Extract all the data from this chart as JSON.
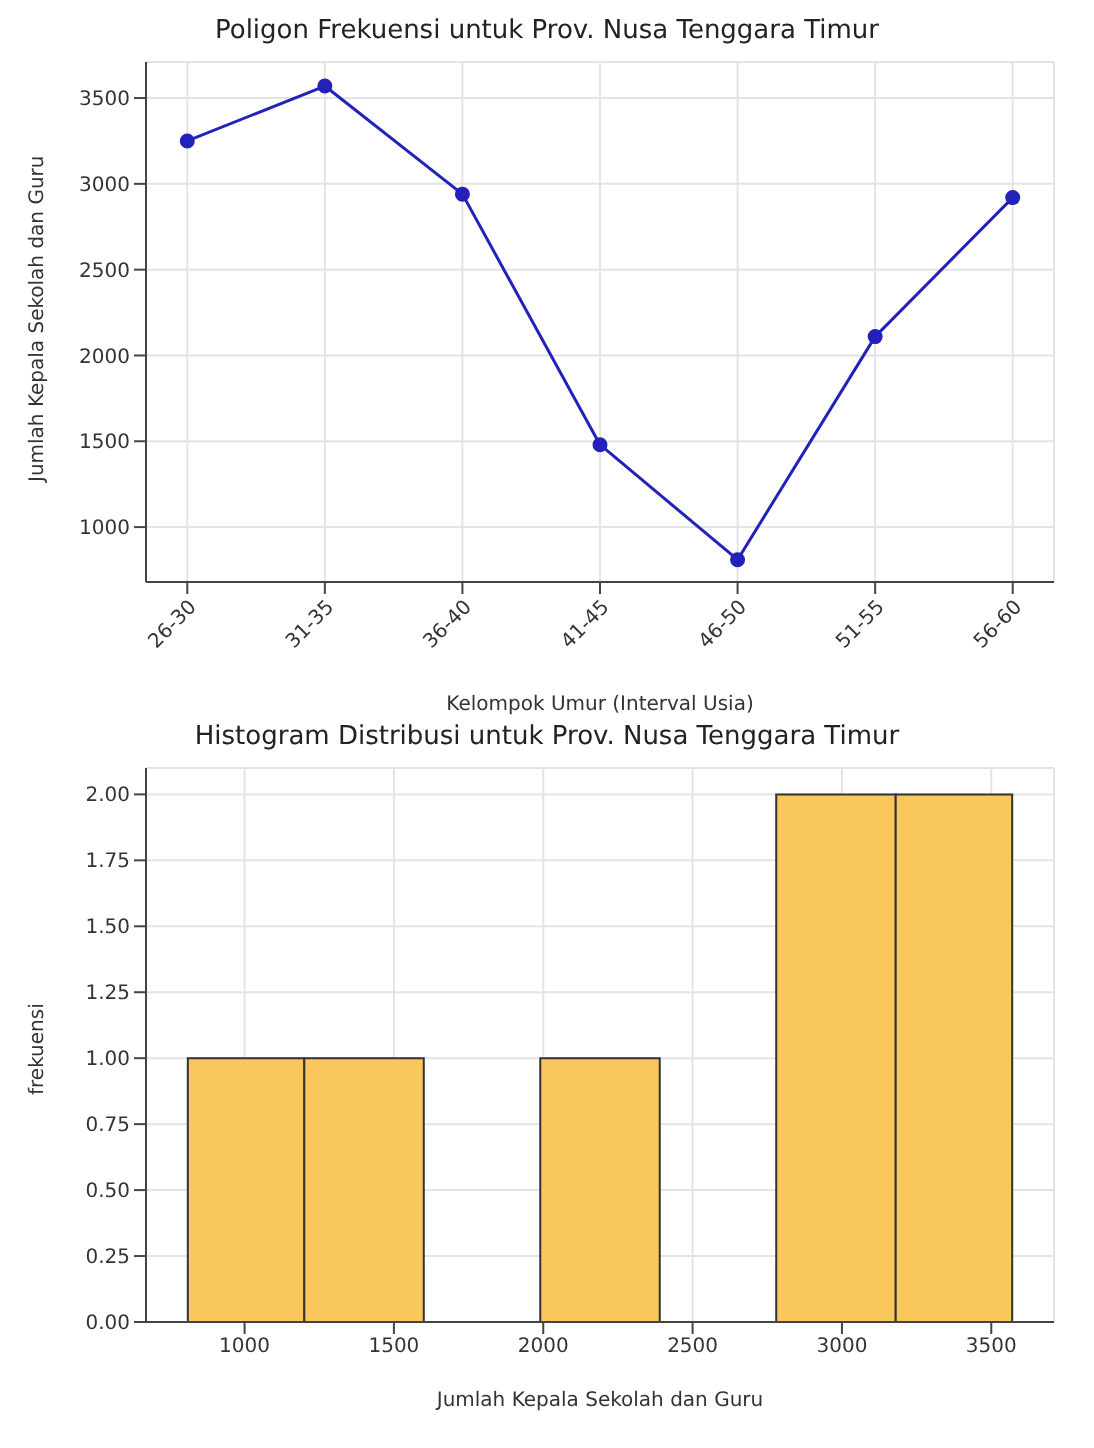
{
  "chart_data": [
    {
      "type": "line",
      "title": "Poligon Frekuensi untuk Prov. Nusa Tenggara Timur",
      "xlabel": "Kelompok Umur (Interval Usia)",
      "ylabel": "Jumlah Kepala Sekolah dan Guru",
      "categories": [
        "26-30",
        "31-35",
        "36-40",
        "41-45",
        "46-50",
        "51-55",
        "56-60"
      ],
      "series": [
        {
          "color": "#2222bb",
          "values": [
            3250,
            3570,
            2940,
            1480,
            810,
            2110,
            2920
          ]
        }
      ],
      "ylim": [
        680,
        3710
      ],
      "yticks": [
        1000,
        1500,
        2000,
        2500,
        3000,
        3500
      ],
      "grid": true,
      "marker": "circle",
      "line_style": "solid",
      "legend": false
    },
    {
      "type": "histogram",
      "title": "Histogram Distribusi untuk Prov. Nusa Tenggara Timur",
      "xlabel": "Jumlah Kepala Sekolah dan Guru",
      "ylabel": "frekuensi",
      "bins": [
        810,
        1200,
        1600,
        1990,
        2390,
        2780,
        3180,
        3570
      ],
      "values": [
        1,
        1,
        0,
        1,
        0,
        2,
        2
      ],
      "color": "#f9c75c",
      "xlim": [
        670,
        3710
      ],
      "xticks": [
        1000,
        1500,
        2000,
        2500,
        3000,
        3500
      ],
      "ylim": [
        0,
        2.1
      ],
      "yticks": [
        {
          "value": 0,
          "label": "0.00"
        },
        {
          "value": 0.25,
          "label": "0.25"
        },
        {
          "value": 0.5,
          "label": "0.50"
        },
        {
          "value": 0.75,
          "label": "0.75"
        },
        {
          "value": 1,
          "label": "1.00"
        },
        {
          "value": 1.25,
          "label": "1.25"
        },
        {
          "value": 1.5,
          "label": "1.50"
        },
        {
          "value": 1.75,
          "label": "1.75"
        },
        {
          "value": 2,
          "label": "2.00"
        }
      ],
      "grid": true,
      "legend": false
    }
  ]
}
